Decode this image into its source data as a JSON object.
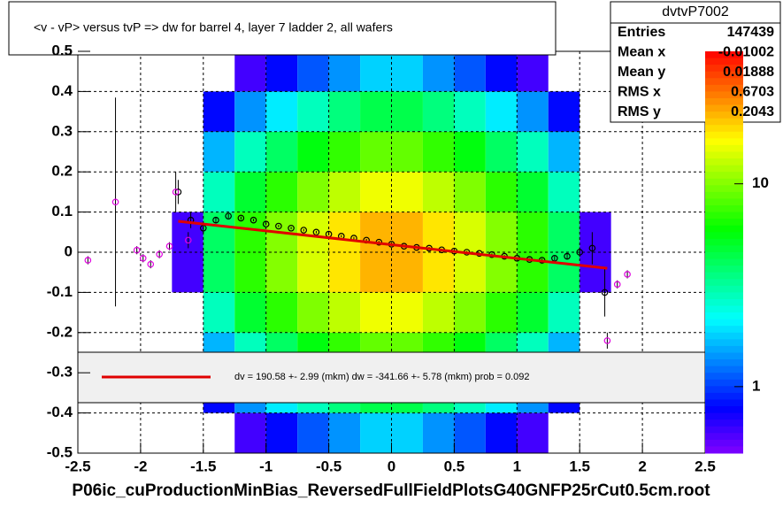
{
  "chart_data": {
    "type": "histogram2d",
    "title": "<v - vP>       versus  tvP =>  dw for barrel 4, layer 7 ladder 2, all wafers",
    "caption": "P06ic_cuProductionMinBias_ReversedFullFieldPlotsG40GNFP25rCut0.5cm.root",
    "xlim": [
      -2.5,
      2.5
    ],
    "xticks": [
      -2.5,
      -2,
      -1.5,
      -1,
      -0.5,
      0,
      0.5,
      1,
      1.5,
      2,
      2.5
    ],
    "ylim": [
      -0.5,
      0.5
    ],
    "yticks": [
      -0.5,
      -0.4,
      -0.3,
      -0.2,
      -0.1,
      0,
      0.1,
      0.2,
      0.3,
      0.4,
      0.5
    ],
    "grid": true,
    "zlim": [
      0.47,
      45
    ],
    "zlog": true,
    "zticks": [
      1,
      10
    ],
    "xbins": [
      -1.75,
      -1.5,
      -1.25,
      -1,
      -0.75,
      -0.5,
      -0.25,
      0,
      0.25,
      0.5,
      0.75,
      1,
      1.25,
      1.5,
      1.75
    ],
    "ybins": [
      -0.5,
      -0.4,
      -0.3,
      -0.2,
      -0.1,
      0,
      0.1,
      0.2,
      0.3,
      0.4,
      0.5
    ],
    "counts": [
      [
        0.05,
        0.3,
        0.6,
        0.8,
        1.1,
        1.4,
        1.8,
        1.8,
        1.4,
        1.1,
        0.8,
        0.6,
        0.3,
        0.05
      ],
      [
        0.1,
        0.8,
        1.4,
        2,
        2.8,
        3.6,
        4.4,
        4.4,
        3.6,
        2.8,
        2,
        1.4,
        0.8,
        0.1
      ],
      [
        0.2,
        1.6,
        2.8,
        4,
        5.6,
        7.2,
        8.8,
        8.8,
        7.2,
        5.6,
        4,
        2.8,
        1.6,
        0.2
      ],
      [
        0.4,
        2.8,
        4.9,
        7,
        9.8,
        12.6,
        15.4,
        15.4,
        12.6,
        9.8,
        7,
        4.9,
        2.8,
        0.4
      ],
      [
        0.6,
        4,
        7,
        10,
        14,
        18,
        22,
        22,
        18,
        14,
        10,
        7,
        4,
        0.6
      ],
      [
        0.6,
        4,
        7,
        10,
        14,
        18,
        22,
        22,
        18,
        14,
        10,
        7,
        4,
        0.6
      ],
      [
        0.4,
        2.8,
        4.9,
        7,
        9.8,
        12.6,
        15.4,
        15.4,
        12.6,
        9.8,
        7,
        4.9,
        2.8,
        0.4
      ],
      [
        0.2,
        1.6,
        2.8,
        4,
        5.6,
        7.2,
        8.8,
        8.8,
        7.2,
        5.6,
        4,
        2.8,
        1.6,
        0.2
      ],
      [
        0.1,
        0.8,
        1.4,
        2,
        2.8,
        3.6,
        4.4,
        4.4,
        3.6,
        2.8,
        2,
        1.4,
        0.8,
        0.1
      ],
      [
        0.05,
        0.3,
        0.6,
        0.8,
        1.1,
        1.4,
        1.8,
        1.8,
        1.4,
        1.1,
        0.8,
        0.6,
        0.3,
        0.05
      ]
    ],
    "profiles": [
      {
        "color": "#000000",
        "x": [
          -1.7,
          -1.6,
          -1.5,
          -1.4,
          -1.3,
          -1.2,
          -1.1,
          -1.0,
          -0.9,
          -0.8,
          -0.7,
          -0.6,
          -0.5,
          -0.4,
          -0.3,
          -0.2,
          -0.1,
          0,
          0.1,
          0.2,
          0.3,
          0.4,
          0.5,
          0.6,
          0.7,
          0.8,
          0.9,
          1.0,
          1.1,
          1.2,
          1.3,
          1.4,
          1.5,
          1.6,
          1.7
        ],
        "values": [
          0.15,
          0.08,
          0.06,
          0.08,
          0.09,
          0.085,
          0.08,
          0.07,
          0.065,
          0.06,
          0.055,
          0.05,
          0.045,
          0.04,
          0.035,
          0.03,
          0.025,
          0.02,
          0.015,
          0.012,
          0.01,
          0.006,
          0.003,
          0,
          -0.003,
          -0.006,
          -0.01,
          -0.015,
          -0.018,
          -0.02,
          -0.015,
          -0.01,
          0.0,
          0.01,
          -0.1
        ],
        "errors": [
          0.03,
          0.02,
          0.012,
          0.008,
          0.005,
          0.004,
          0.003,
          0.003,
          0.003,
          0.003,
          0.003,
          0.003,
          0.003,
          0.003,
          0.003,
          0.003,
          0.003,
          0.003,
          0.003,
          0.003,
          0.003,
          0.003,
          0.003,
          0.003,
          0.003,
          0.003,
          0.003,
          0.003,
          0.003,
          0.004,
          0.005,
          0.008,
          0.012,
          0.04,
          0.06
        ]
      },
      {
        "color": "#e000e0",
        "x": [
          -2.42,
          -2.2,
          -2.03,
          -1.98,
          -1.92,
          -1.85,
          -1.77,
          -1.72,
          -1.62,
          1.72,
          1.8,
          1.88
        ],
        "values": [
          -0.02,
          0.125,
          0.005,
          -0.015,
          -0.03,
          -0.005,
          0.015,
          0.15,
          0.03,
          -0.22,
          -0.08,
          -0.055
        ],
        "errors": [
          0.01,
          0.26,
          0.01,
          0.01,
          0.01,
          0.01,
          0.01,
          0.05,
          0.02,
          0.02,
          0.01,
          0.01
        ]
      }
    ],
    "fit": {
      "color": "#e00000",
      "x": [
        -1.7,
        1.72
      ],
      "values": [
        0.077,
        -0.04
      ]
    },
    "fit_label": "dv =  190.58 +-  2.99 (mkm) dw = -341.66 +-  5.78 (mkm) prob = 0.092",
    "stats": {
      "title": "dvtvP7002",
      "rows": [
        [
          "Entries",
          "147439"
        ],
        [
          "Mean x",
          "-0.01002"
        ],
        [
          "Mean y",
          "0.01888"
        ],
        [
          "RMS x",
          "0.6703"
        ],
        [
          "RMS y",
          "0.2043"
        ]
      ]
    }
  }
}
